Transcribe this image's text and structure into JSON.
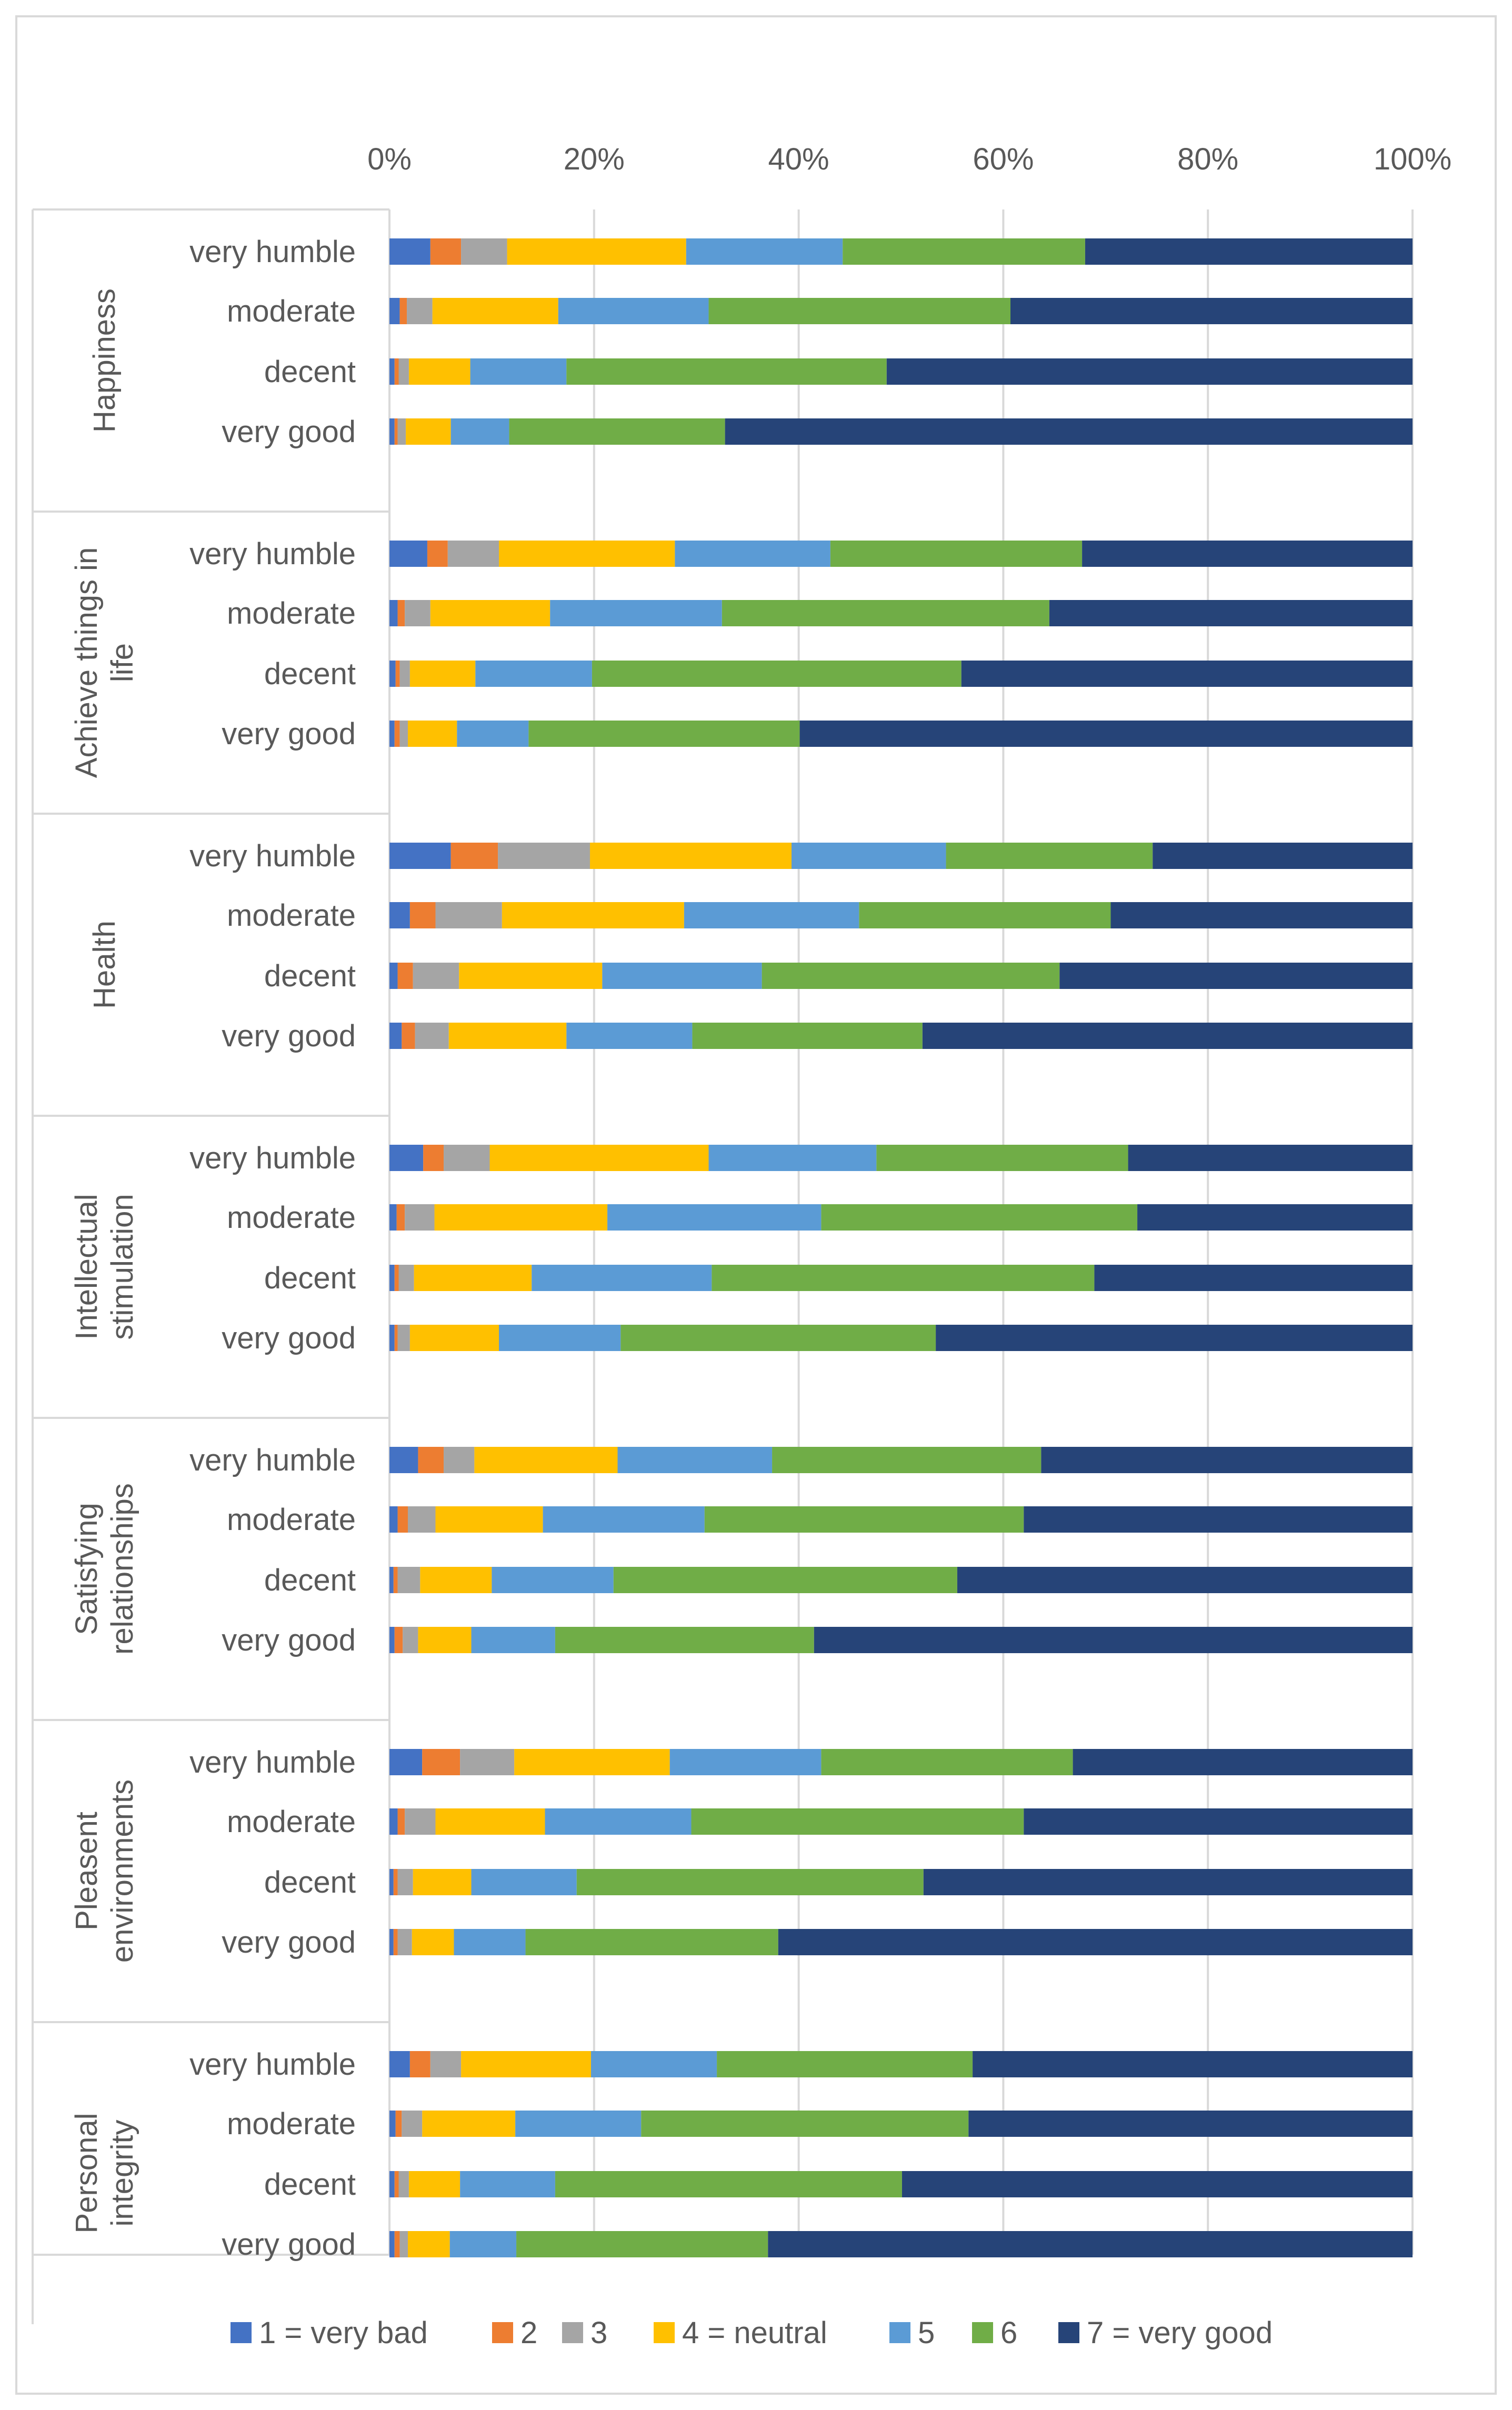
{
  "chart_data": {
    "type": "bar",
    "orientation": "horizontal",
    "stacked": true,
    "percent_stacked": true,
    "x_ticks": [
      "0%",
      "20%",
      "40%",
      "60%",
      "80%",
      "100%"
    ],
    "xlim": [
      0,
      100
    ],
    "grid": true,
    "legend_position": "bottom",
    "colors": [
      "#4472c4",
      "#ed7d31",
      "#a5a5a5",
      "#ffc000",
      "#5b9bd5",
      "#70ad47",
      "#264478"
    ],
    "series_names": [
      "1 = very bad",
      "2",
      "3",
      "4 = neutral",
      "5",
      "6",
      "7 = very good"
    ],
    "groups": [
      {
        "name": "Happiness",
        "label_lines": [
          "Happiness"
        ],
        "categories": [
          {
            "label": "very humble",
            "values": [
              4,
              3,
              4.5,
              17.5,
              15.3,
              23.7,
              32
            ]
          },
          {
            "label": "moderate",
            "values": [
              1,
              0.7,
              2.5,
              12.3,
              14.7,
              29.5,
              39.3
            ]
          },
          {
            "label": "decent",
            "values": [
              0.5,
              0.4,
              1,
              6,
              9.4,
              31.3,
              51.4
            ]
          },
          {
            "label": "very good",
            "values": [
              0.5,
              0.3,
              0.8,
              4.4,
              5.7,
              21.1,
              67.2
            ]
          }
        ]
      },
      {
        "name": "Achieve things in life",
        "label_lines": [
          "Achieve things in",
          "life"
        ],
        "categories": [
          {
            "label": "very humble",
            "values": [
              3.7,
              2,
              5,
              17.2,
              15.2,
              24.6,
              32.3
            ]
          },
          {
            "label": "moderate",
            "values": [
              0.8,
              0.7,
              2.5,
              11.7,
              16.8,
              32,
              35.5
            ]
          },
          {
            "label": "decent",
            "values": [
              0.6,
              0.4,
              1,
              6.4,
              11.4,
              36.1,
              44.1
            ]
          },
          {
            "label": "very good",
            "values": [
              0.5,
              0.5,
              0.8,
              4.8,
              7,
              26.5,
              59.9
            ]
          }
        ]
      },
      {
        "name": "Health",
        "label_lines": [
          "Health"
        ],
        "categories": [
          {
            "label": "very humble",
            "values": [
              6,
              4.6,
              9,
              19.7,
              15.1,
              20.2,
              25.4
            ]
          },
          {
            "label": "moderate",
            "values": [
              2,
              2.5,
              6.5,
              17.8,
              17.1,
              24.6,
              29.5
            ]
          },
          {
            "label": "decent",
            "values": [
              0.8,
              1.5,
              4.5,
              14,
              15.6,
              29.1,
              34.5
            ]
          },
          {
            "label": "very good",
            "values": [
              1.2,
              1.3,
              3.3,
              11.5,
              12.3,
              22.5,
              47.9
            ]
          }
        ]
      },
      {
        "name": "Intellectual stimulation",
        "label_lines": [
          "Intellectual",
          "stimulation"
        ],
        "categories": [
          {
            "label": "very humble",
            "values": [
              3.3,
              2,
              4.5,
              21.4,
              16.4,
              24.6,
              27.8
            ]
          },
          {
            "label": "moderate",
            "values": [
              0.7,
              0.8,
              2.9,
              16.9,
              20.9,
              30.9,
              26.9
            ]
          },
          {
            "label": "decent",
            "values": [
              0.5,
              0.4,
              1.5,
              11.5,
              17.6,
              37.4,
              31.1
            ]
          },
          {
            "label": "very good",
            "values": [
              0.5,
              0.3,
              1.2,
              8.7,
              11.9,
              30.8,
              46.6
            ]
          }
        ]
      },
      {
        "name": "Satisfying relationships",
        "label_lines": [
          "Satisfying",
          "relationships"
        ],
        "categories": [
          {
            "label": "very humble",
            "values": [
              2.8,
              2.5,
              3,
              14,
              15.1,
              26.3,
              36.3
            ]
          },
          {
            "label": "moderate",
            "values": [
              0.8,
              1,
              2.7,
              10.5,
              15.8,
              31.2,
              38
            ]
          },
          {
            "label": "decent",
            "values": [
              0.4,
              0.4,
              2.2,
              7,
              11.9,
              33.6,
              44.5
            ]
          },
          {
            "label": "very good",
            "values": [
              0.5,
              0.8,
              1.5,
              5.2,
              8.2,
              25.3,
              58.5
            ]
          }
        ]
      },
      {
        "name": "Pleasent environments",
        "label_lines": [
          "Pleasent",
          "environments"
        ],
        "categories": [
          {
            "label": "very humble",
            "values": [
              3.2,
              3.7,
              5.3,
              15.2,
              14.8,
              24.6,
              33.2
            ]
          },
          {
            "label": "moderate",
            "values": [
              0.8,
              0.7,
              3,
              10.7,
              14.3,
              32.5,
              38
            ]
          },
          {
            "label": "decent",
            "values": [
              0.4,
              0.4,
              1.5,
              5.7,
              10.3,
              33.9,
              47.8
            ]
          },
          {
            "label": "very good",
            "values": [
              0.4,
              0.4,
              1.4,
              4.1,
              7,
              24.7,
              62
            ]
          }
        ]
      },
      {
        "name": "Personal integrity",
        "label_lines": [
          "Personal",
          "integrity"
        ],
        "categories": [
          {
            "label": "very humble",
            "values": [
              2,
              2,
              3,
              12.7,
              12.3,
              25,
              43
            ]
          },
          {
            "label": "moderate",
            "values": [
              0.6,
              0.6,
              2,
              9.1,
              12.3,
              32,
              43.4
            ]
          },
          {
            "label": "decent",
            "values": [
              0.5,
              0.4,
              1,
              5,
              9.3,
              33.9,
              49.9
            ]
          },
          {
            "label": "very good",
            "values": [
              0.5,
              0.5,
              0.8,
              4.1,
              6.5,
              24.6,
              63
            ]
          }
        ]
      }
    ]
  }
}
